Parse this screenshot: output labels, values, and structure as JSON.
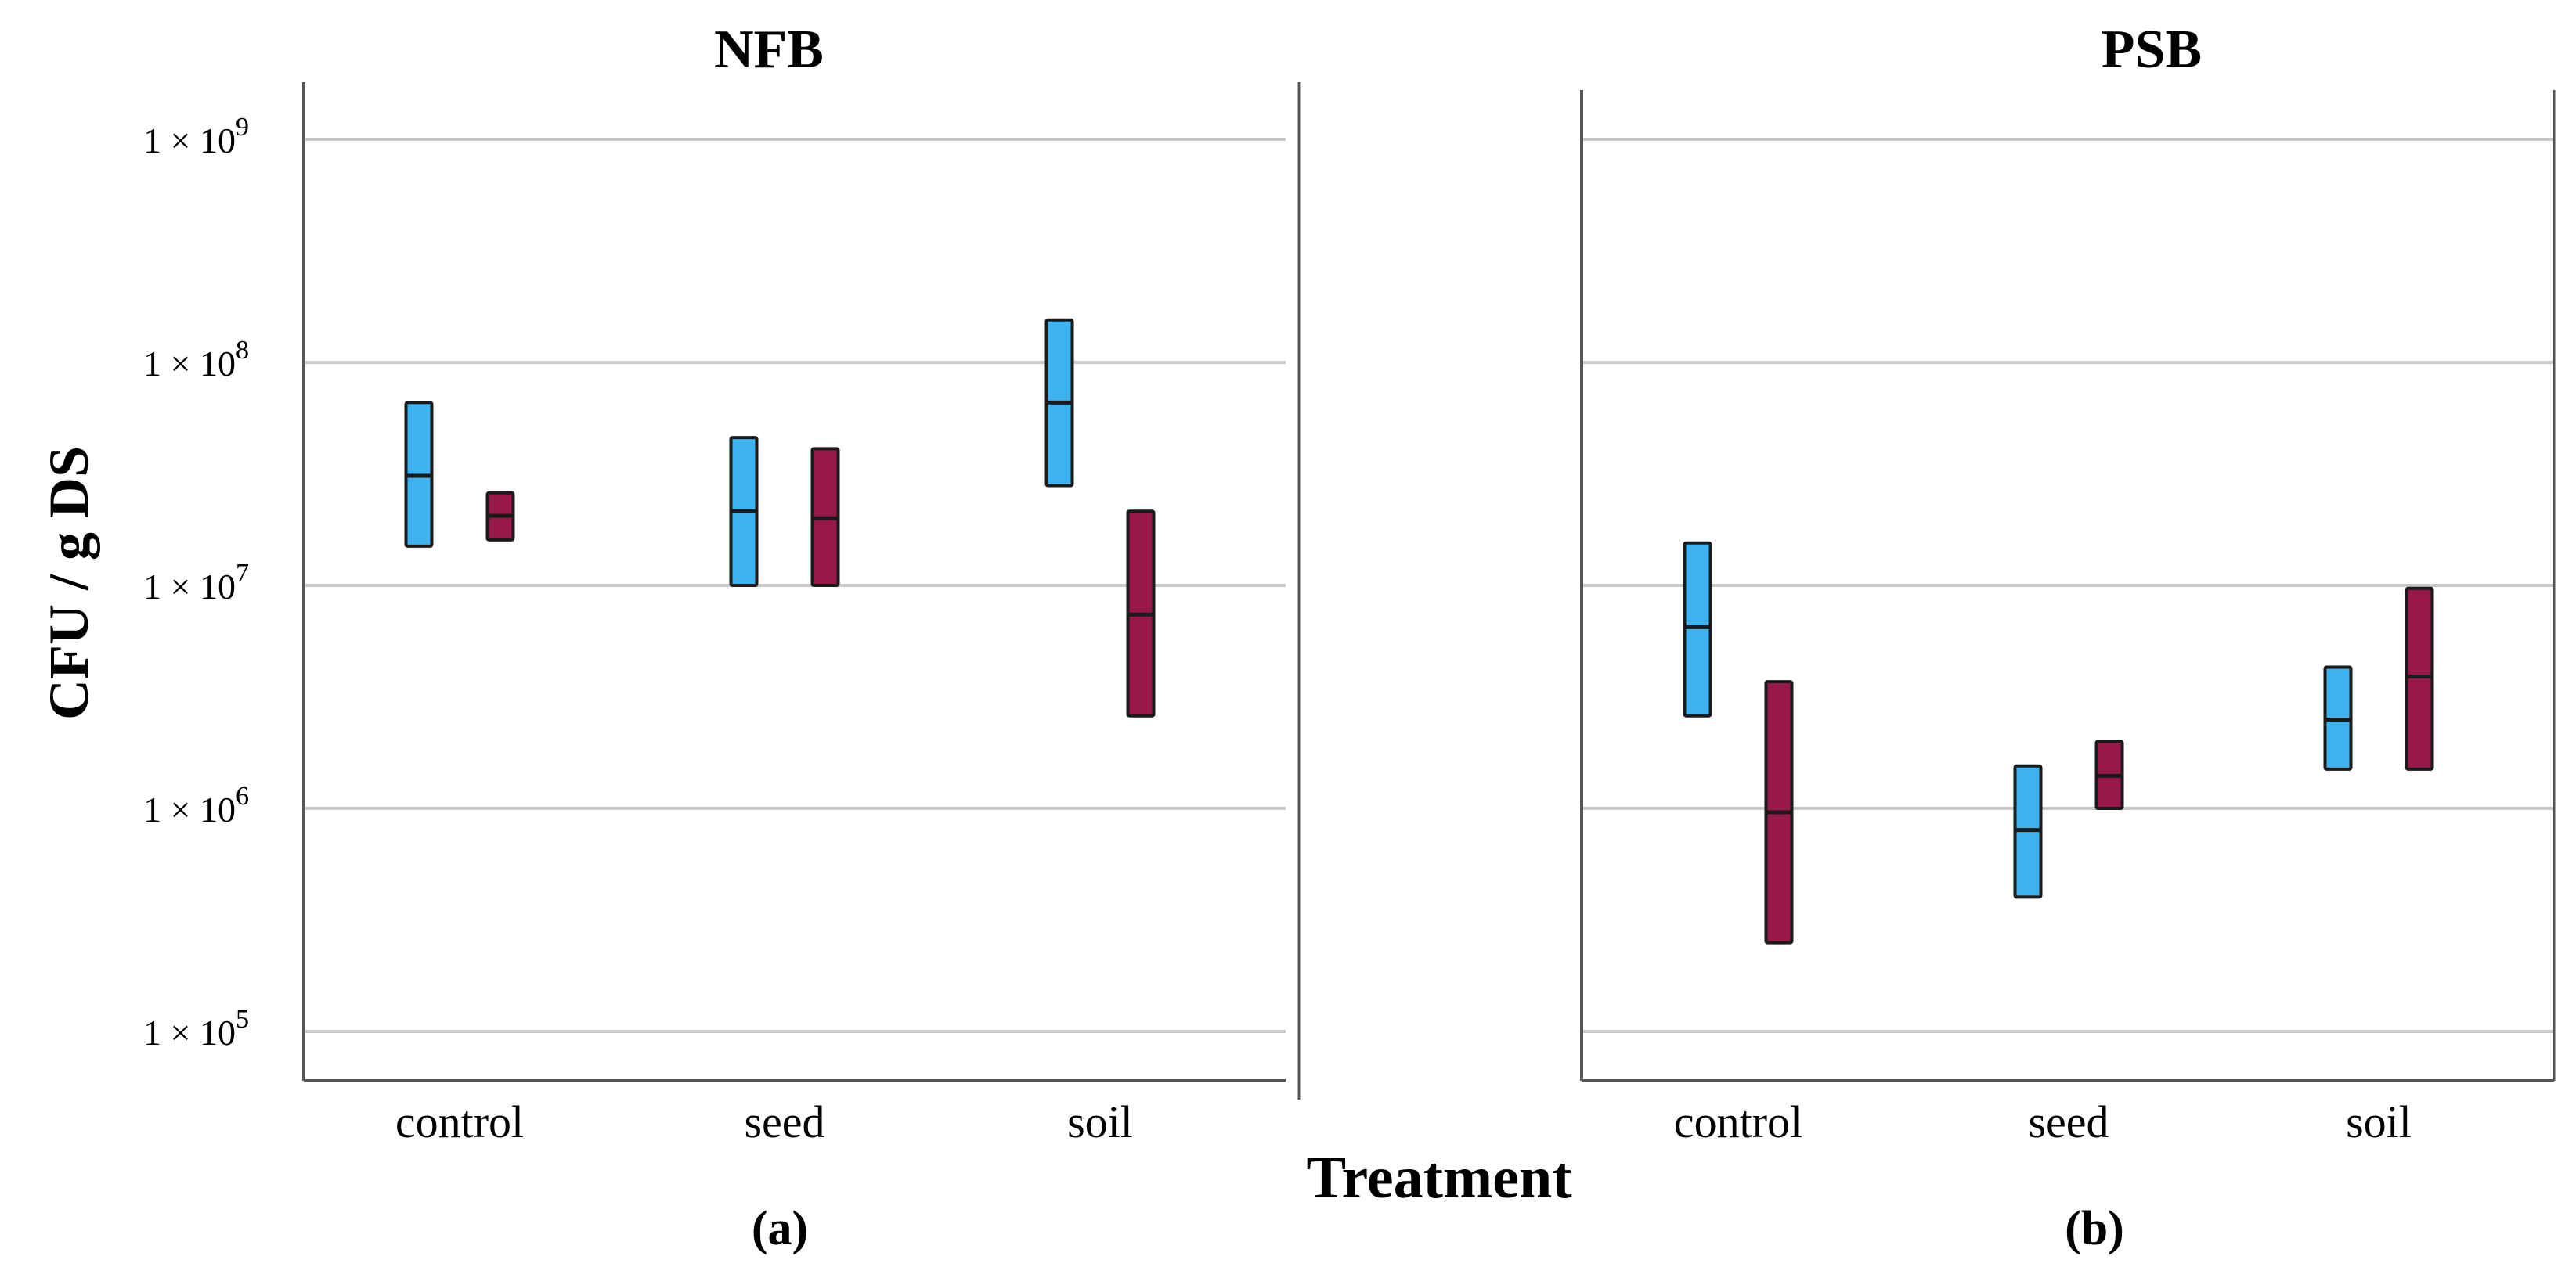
{
  "figure": {
    "x_axis_label": "Treatment",
    "y_axis_label": "CFU / g DS",
    "y_tick_labels": [
      {
        "base": "1 × 10",
        "exp": "9"
      },
      {
        "base": "1 × 10",
        "exp": "8"
      },
      {
        "base": "1 × 10",
        "exp": "7"
      },
      {
        "base": "1 × 10",
        "exp": "6"
      },
      {
        "base": "1 × 10",
        "exp": "5"
      }
    ]
  },
  "colors": {
    "blue": "#3fb3f2",
    "maroon": "#99184a",
    "grid": "#c8c8c8",
    "axis": "#555555"
  },
  "chart_data": [
    {
      "type": "box",
      "title": "NFB",
      "panel_label": "(a)",
      "xlabel": "Treatment",
      "ylabel": "CFU / g DS",
      "yscale": "log",
      "ylim": [
        40000,
        2000000000
      ],
      "categories": [
        "control",
        "seed",
        "soil"
      ],
      "series": [
        {
          "name": "blue",
          "color": "blue",
          "values": [
            {
              "low": 15000000,
              "median": 31000000,
              "high": 66000000
            },
            {
              "low": 10000000,
              "median": 21500000,
              "high": 46000000
            },
            {
              "low": 28000000,
              "median": 66000000,
              "high": 155000000
            }
          ]
        },
        {
          "name": "maroon",
          "color": "maroon",
          "values": [
            {
              "low": 16000000,
              "median": 20500000,
              "high": 26000000
            },
            {
              "low": 10000000,
              "median": 20000000,
              "high": 41000000
            },
            {
              "low": 2600000,
              "median": 7400000,
              "high": 21500000
            }
          ]
        }
      ]
    },
    {
      "type": "box",
      "title": "PSB",
      "panel_label": "(b)",
      "xlabel": "Treatment",
      "ylabel": "CFU / g DS",
      "yscale": "log",
      "ylim": [
        40000,
        2000000000
      ],
      "categories": [
        "control",
        "seed",
        "soil"
      ],
      "series": [
        {
          "name": "blue",
          "color": "blue",
          "values": [
            {
              "low": 2600000,
              "median": 6500000,
              "high": 15500000
            },
            {
              "low": 400000,
              "median": 800000,
              "high": 1550000
            },
            {
              "low": 1500000,
              "median": 2500000,
              "high": 4300000
            }
          ]
        },
        {
          "name": "maroon",
          "color": "maroon",
          "values": [
            {
              "low": 250000,
              "median": 960000,
              "high": 3700000
            },
            {
              "low": 1000000,
              "median": 1400000,
              "high": 2000000
            },
            {
              "low": 1500000,
              "median": 3900000,
              "high": 9700000
            }
          ]
        }
      ]
    }
  ]
}
